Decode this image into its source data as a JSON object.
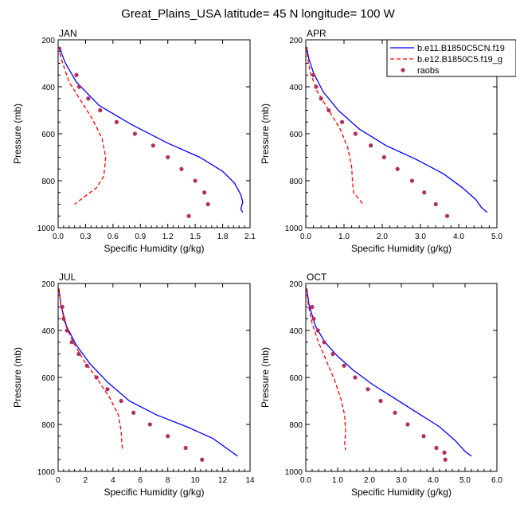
{
  "chart_data": {
    "type": "line",
    "title": "Great_Plains_USA  latitude= 45 N longitude= 100 W",
    "legend": {
      "placement": "top-right",
      "entries": [
        {
          "label": "b.e11.B1850C5CN.f19",
          "style": "solid",
          "color": "#0000ff"
        },
        {
          "label": "b.e12.B1850C5.f19_g",
          "style": "dashed",
          "color": "#ff0000"
        },
        {
          "label": "raobs",
          "style": "marker",
          "color": "#b03060"
        }
      ]
    },
    "panels": [
      {
        "label": "JAN",
        "xlabel": "Specific Humidity (g/kg)",
        "ylabel": "Pressure (mb)",
        "xlim": [
          0,
          2.1
        ],
        "ylim": [
          200,
          1000
        ],
        "xticks": [
          "0.0",
          "0.3",
          "0.6",
          "0.9",
          "1.2",
          "1.5",
          "1.8",
          "2.1"
        ],
        "yticks": [
          "200",
          "400",
          "600",
          "800",
          "1000"
        ],
        "series": [
          {
            "name": "b.e11.B1850C5CN.f19",
            "x": [
              0.02,
              0.04,
              0.08,
              0.2,
              0.45,
              0.8,
              1.2,
              1.55,
              1.8,
              1.93,
              2.0,
              2.02,
              2.0,
              2.02
            ],
            "y": [
              230,
              260,
              300,
              380,
              480,
              560,
              640,
              700,
              760,
              810,
              860,
              890,
              920,
              935
            ]
          },
          {
            "name": "b.e12.B1850C5.f19_g",
            "x": [
              0.01,
              0.02,
              0.05,
              0.12,
              0.25,
              0.38,
              0.48,
              0.52,
              0.5,
              0.42,
              0.28,
              0.18
            ],
            "y": [
              230,
              260,
              300,
              380,
              460,
              540,
              620,
              700,
              780,
              830,
              870,
              900
            ]
          },
          {
            "name": "raobs",
            "x": [
              0.2,
              0.23,
              0.33,
              0.46,
              0.64,
              0.84,
              1.04,
              1.2,
              1.35,
              1.5,
              1.6,
              1.64,
              1.43
            ],
            "y": [
              350,
              400,
              450,
              500,
              550,
              600,
              650,
              700,
              750,
              800,
              850,
              900,
              950
            ]
          }
        ]
      },
      {
        "label": "APR",
        "xlabel": "Specific Humidity (g/kg)",
        "ylabel": "Pressure (mb)",
        "xlim": [
          0,
          5
        ],
        "ylim": [
          200,
          1000
        ],
        "xticks": [
          "0.0",
          "1.0",
          "2.0",
          "3.0",
          "4.0",
          "5.0"
        ],
        "yticks": [
          "200",
          "400",
          "600",
          "800",
          "1000"
        ],
        "series": [
          {
            "name": "b.e11.B1850C5CN.f19",
            "x": [
              0.02,
              0.08,
              0.2,
              0.45,
              0.85,
              1.4,
              2.1,
              2.9,
              3.6,
              4.1,
              4.45,
              4.6,
              4.75
            ],
            "y": [
              230,
              280,
              340,
              420,
              500,
              580,
              650,
              710,
              770,
              830,
              880,
              915,
              935
            ]
          },
          {
            "name": "b.e12.B1850C5.f19_g",
            "x": [
              0.02,
              0.05,
              0.12,
              0.3,
              0.6,
              0.9,
              1.1,
              1.2,
              1.22,
              1.25,
              1.4,
              1.5
            ],
            "y": [
              230,
              280,
              340,
              420,
              500,
              580,
              660,
              740,
              800,
              850,
              880,
              900
            ]
          },
          {
            "name": "raobs",
            "x": [
              0.2,
              0.27,
              0.4,
              0.6,
              0.95,
              1.3,
              1.7,
              2.05,
              2.4,
              2.78,
              3.1,
              3.4,
              3.7
            ],
            "y": [
              350,
              400,
              450,
              500,
              550,
              600,
              650,
              700,
              750,
              800,
              850,
              900,
              950
            ]
          }
        ]
      },
      {
        "label": "JUL",
        "xlabel": "Specific Humidity (g/kg)",
        "ylabel": "Pressure (mb)",
        "xlim": [
          0,
          14
        ],
        "ylim": [
          200,
          1000
        ],
        "xticks": [
          "0",
          "2",
          "4",
          "6",
          "8",
          "10",
          "12",
          "14"
        ],
        "yticks": [
          "200",
          "400",
          "600",
          "800",
          "1000"
        ],
        "series": [
          {
            "name": "b.e11.B1850C5CN.f19",
            "x": [
              0.05,
              0.2,
              0.6,
              1.3,
              2.3,
              3.6,
              5.2,
              7.2,
              9.4,
              11.3,
              12.5,
              13.1
            ],
            "y": [
              220,
              290,
              380,
              460,
              540,
              620,
              700,
              760,
              810,
              860,
              910,
              935
            ]
          },
          {
            "name": "b.e12.B1850C5.f19_g",
            "x": [
              0.05,
              0.2,
              0.5,
              1.1,
              1.9,
              2.9,
              3.8,
              4.4,
              4.6,
              4.65,
              4.7
            ],
            "y": [
              220,
              290,
              370,
              450,
              530,
              610,
              690,
              760,
              830,
              880,
              910
            ]
          },
          {
            "name": "raobs",
            "x": [
              0.3,
              0.4,
              0.65,
              1.0,
              1.5,
              2.1,
              2.8,
              3.6,
              4.6,
              5.5,
              6.7,
              8.0,
              9.3,
              10.5
            ],
            "y": [
              300,
              350,
              400,
              450,
              500,
              550,
              600,
              650,
              700,
              750,
              800,
              850,
              900,
              950
            ]
          }
        ]
      },
      {
        "label": "OCT",
        "xlabel": "Specific Humidity (g/kg)",
        "ylabel": "Pressure (mb)",
        "xlim": [
          0,
          6
        ],
        "ylim": [
          200,
          1000
        ],
        "xticks": [
          "0.0",
          "1.0",
          "2.0",
          "3.0",
          "4.0",
          "5.0",
          "6.0"
        ],
        "yticks": [
          "200",
          "400",
          "600",
          "800",
          "1000"
        ],
        "series": [
          {
            "name": "b.e11.B1850C5CN.f19",
            "x": [
              0.03,
              0.1,
              0.3,
              0.6,
              1.0,
              1.5,
              2.1,
              2.8,
              3.5,
              4.2,
              4.7,
              5.0,
              5.2
            ],
            "y": [
              220,
              290,
              380,
              450,
              510,
              570,
              630,
              690,
              750,
              810,
              870,
              915,
              935
            ]
          },
          {
            "name": "b.e12.B1850C5.f19_g",
            "x": [
              0.02,
              0.08,
              0.2,
              0.4,
              0.65,
              0.9,
              1.1,
              1.22,
              1.25,
              1.22,
              1.25
            ],
            "y": [
              220,
              290,
              370,
              450,
              530,
              610,
              690,
              760,
              830,
              880,
              910
            ]
          },
          {
            "name": "raobs",
            "x": [
              0.2,
              0.25,
              0.38,
              0.58,
              0.85,
              1.2,
              1.55,
              1.95,
              2.35,
              2.8,
              3.2,
              3.7,
              4.1,
              4.35,
              4.38
            ],
            "y": [
              300,
              350,
              400,
              450,
              500,
              550,
              600,
              650,
              700,
              750,
              800,
              850,
              900,
              920,
              950
            ]
          }
        ]
      }
    ]
  }
}
